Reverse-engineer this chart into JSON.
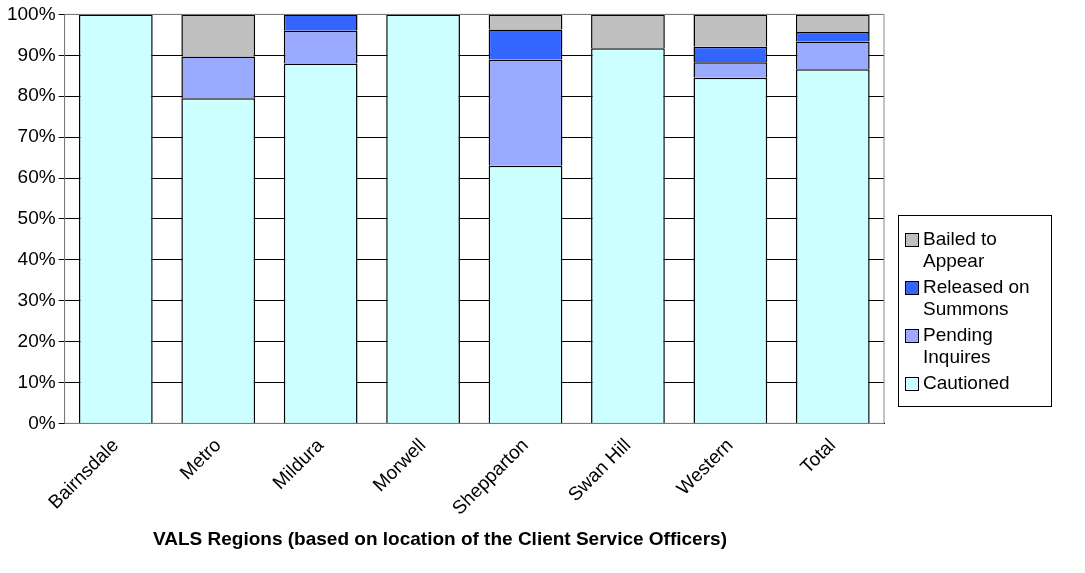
{
  "chart_data": {
    "type": "bar",
    "stacked": true,
    "xlabel": "VALS Regions (based on location of the Client Service Officers)",
    "categories": [
      "Bairnsdale",
      "Metro",
      "Mildura",
      "Morwell",
      "Shepparton",
      "Swan Hill",
      "Western",
      "Total"
    ],
    "series": [
      {
        "name": "Cautioned",
        "color": "#ccffff",
        "values": [
          100,
          79.5,
          88,
          100,
          63,
          91.7,
          84.5,
          86.6
        ]
      },
      {
        "name": "Pending Inquires",
        "color": "#99aaff",
        "values": [
          0,
          10.2,
          8,
          0,
          26,
          0,
          3.8,
          6.8
        ]
      },
      {
        "name": "Released on Summons",
        "color": "#3366ff",
        "values": [
          0,
          0,
          4,
          0,
          7.3,
          0,
          3.8,
          2.3
        ]
      },
      {
        "name": "Bailed to Appear",
        "color": "#c0c0c0",
        "values": [
          0,
          10.3,
          0,
          0,
          3.7,
          8.3,
          7.9,
          4.3
        ]
      }
    ],
    "ylim": [
      0,
      100
    ],
    "yticks": [
      {
        "value": 0,
        "label": "0%"
      },
      {
        "value": 10,
        "label": "10%"
      },
      {
        "value": 20,
        "label": "20%"
      },
      {
        "value": 30,
        "label": "30%"
      },
      {
        "value": 40,
        "label": "40%"
      },
      {
        "value": 50,
        "label": "50%"
      },
      {
        "value": 60,
        "label": "60%"
      },
      {
        "value": 70,
        "label": "70%"
      },
      {
        "value": 80,
        "label": "80%"
      },
      {
        "value": 90,
        "label": "90%"
      },
      {
        "value": 100,
        "label": "100%"
      }
    ],
    "grid": "y",
    "legend": "right"
  }
}
